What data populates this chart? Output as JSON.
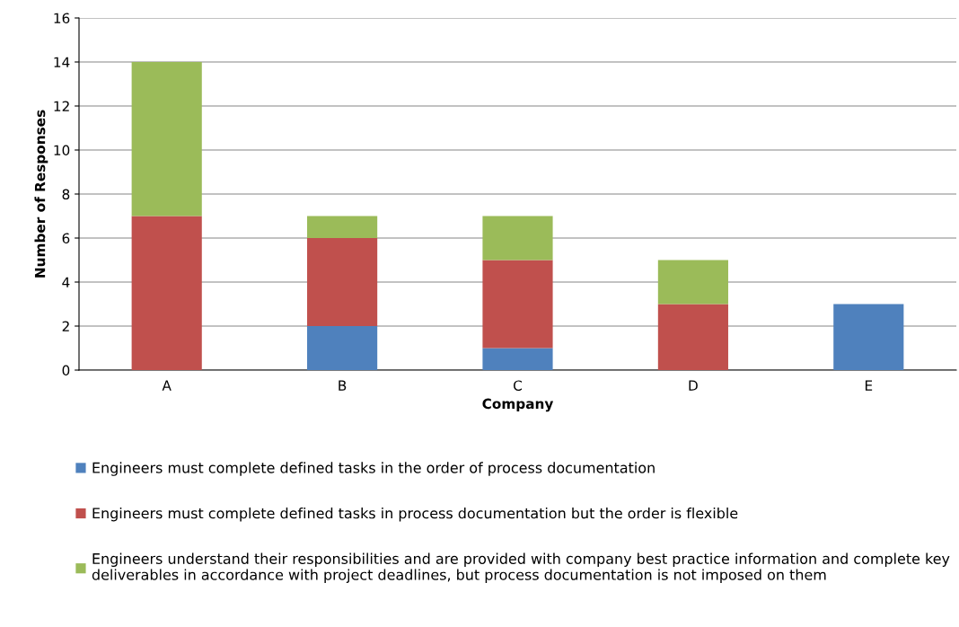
{
  "chart_data": {
    "type": "bar",
    "stacked": true,
    "xlabel": "Company",
    "ylabel": "Number of Responses",
    "categories": [
      "A",
      "B",
      "C",
      "D",
      "E"
    ],
    "series": [
      {
        "name": "Engineers must complete defined tasks in the order of process documentation",
        "color": "#4f81bd",
        "values": [
          0,
          2,
          1,
          0,
          3
        ]
      },
      {
        "name": "Engineers must complete defined tasks in process documentation but the order is flexible",
        "color": "#c0504d",
        "values": [
          7,
          4,
          4,
          3,
          0
        ]
      },
      {
        "name": "Engineers understand their responsibilities and are provided with company best practice information and complete key deliverables in accordance with project deadlines, but process documentation is not imposed on them",
        "color": "#9bbb59",
        "values": [
          7,
          1,
          2,
          2,
          0
        ]
      }
    ],
    "ylim": [
      0,
      16
    ],
    "yticks": [
      0,
      2,
      4,
      6,
      8,
      10,
      12,
      14,
      16
    ],
    "grid": "y",
    "legend": "bottom"
  }
}
